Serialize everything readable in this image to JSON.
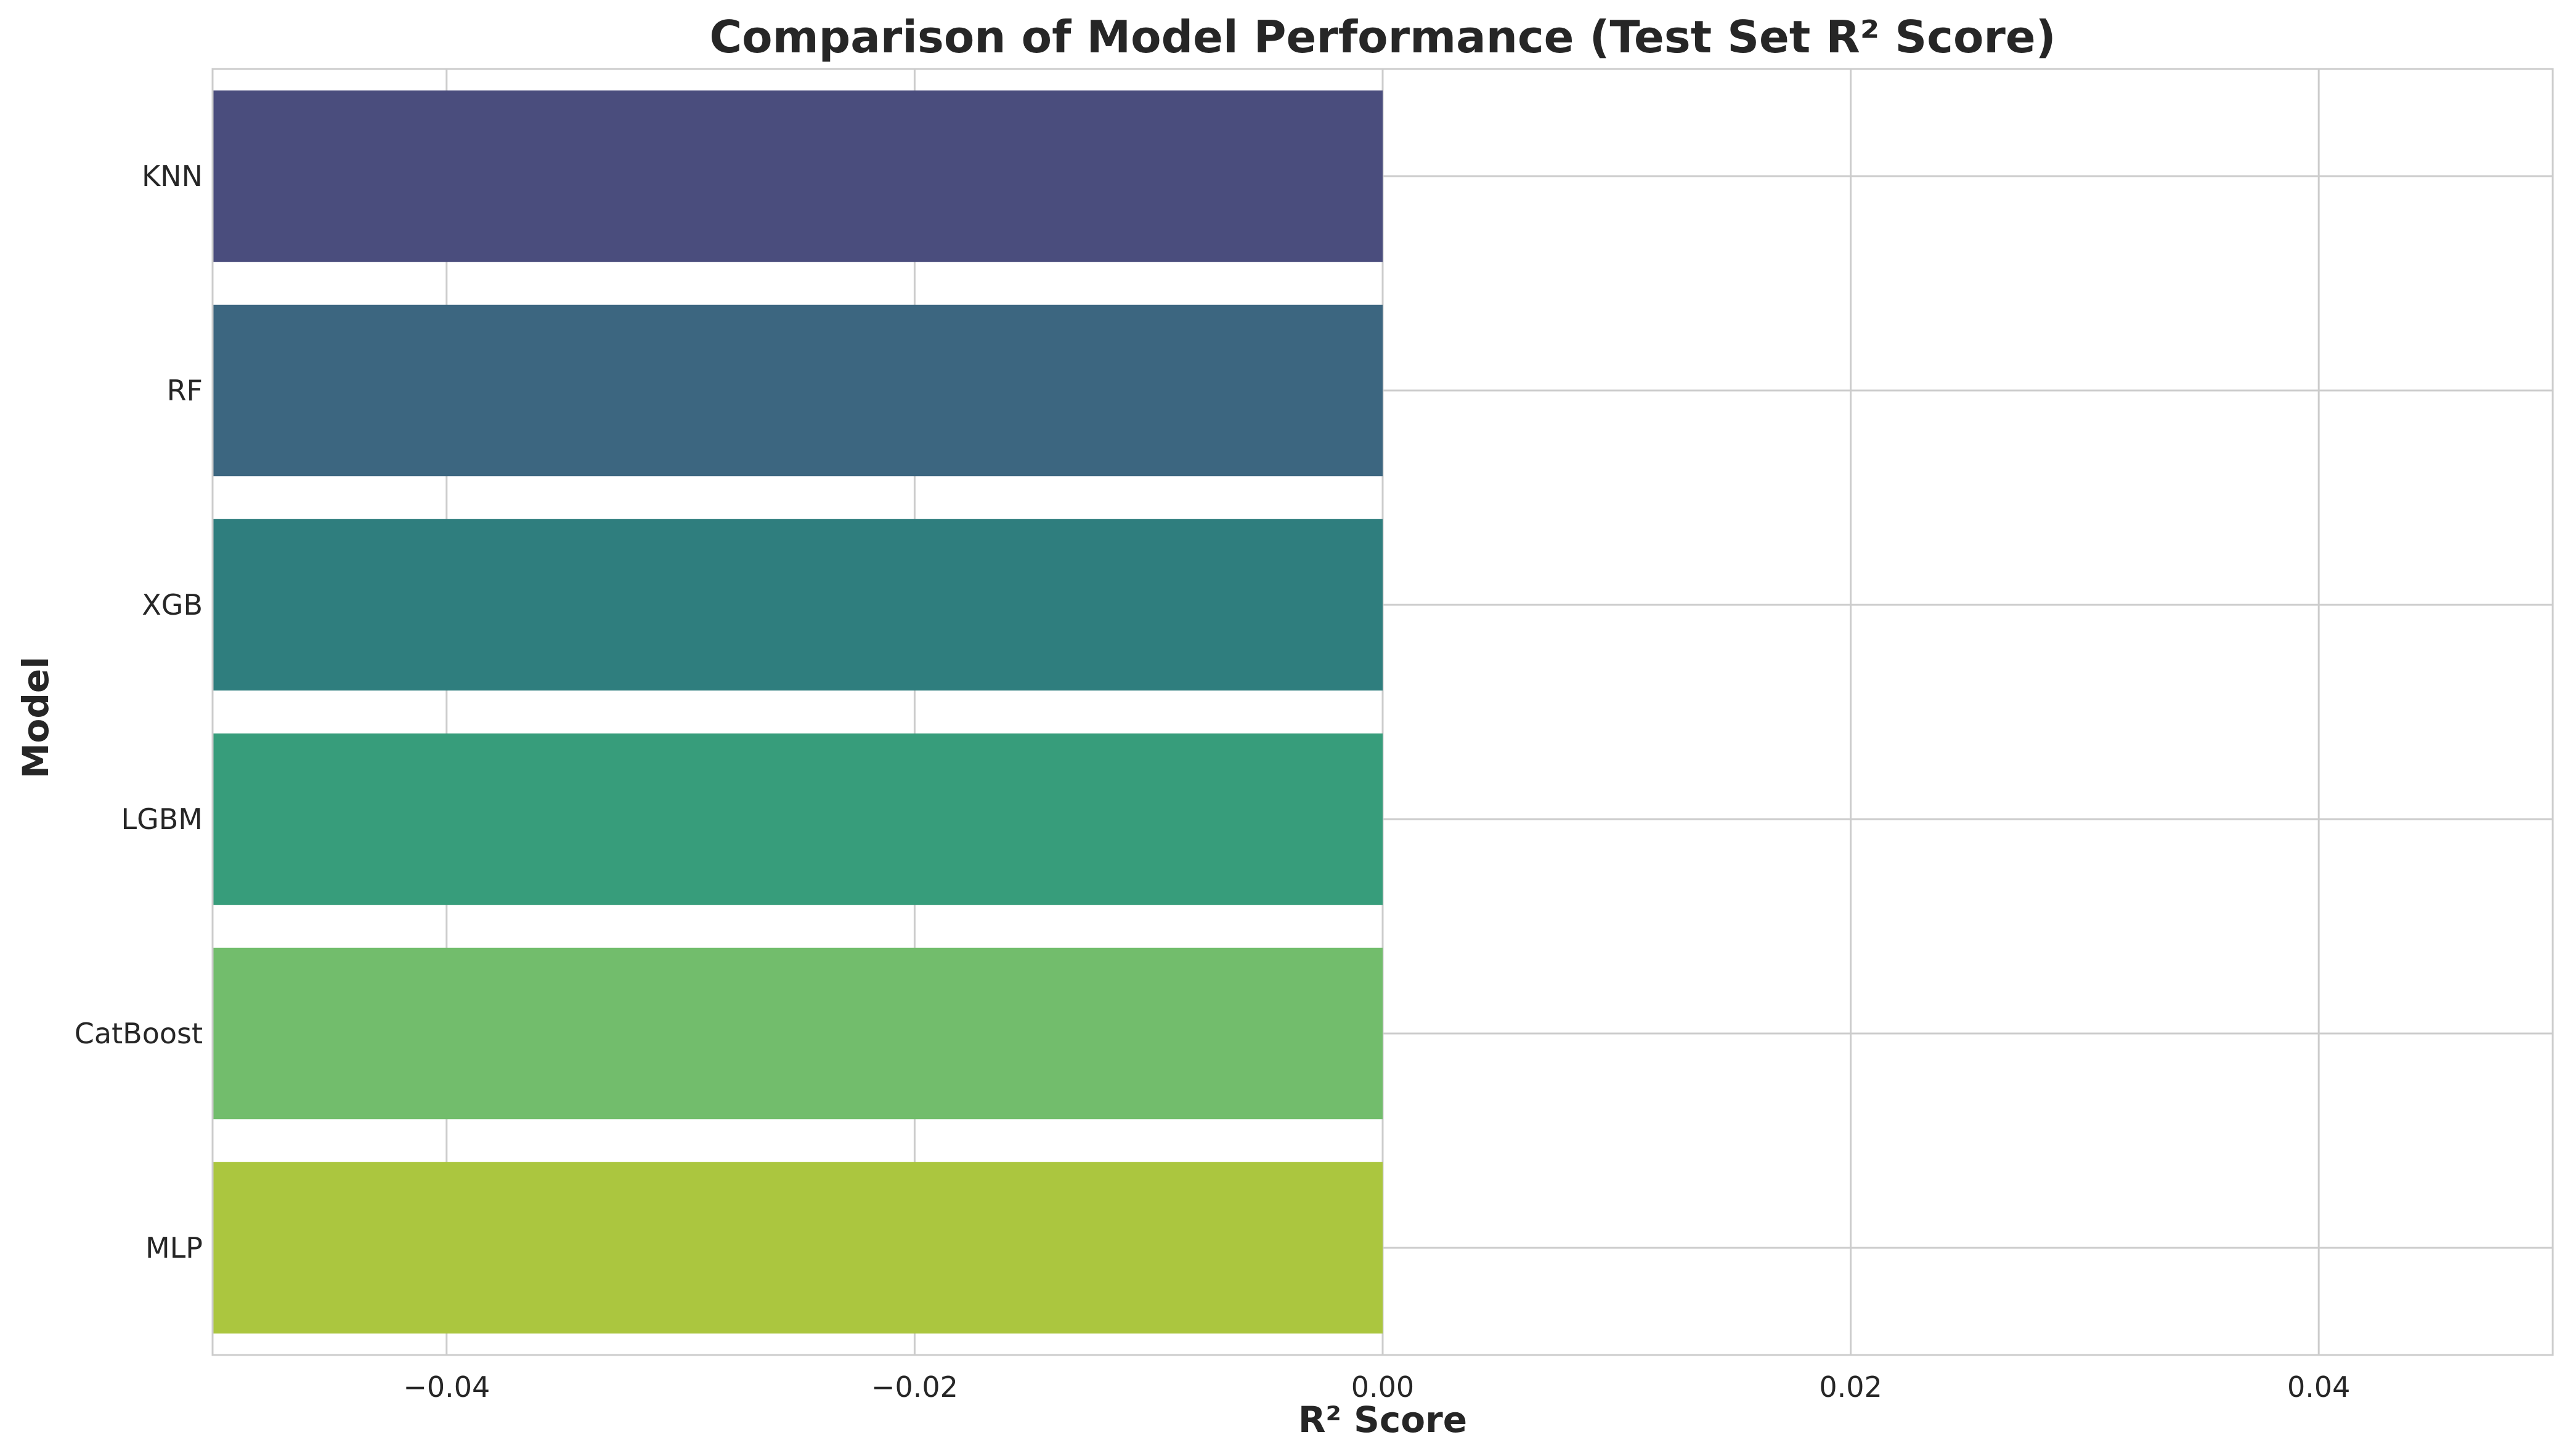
{
  "chart_data": {
    "type": "bar",
    "orientation": "horizontal",
    "title": "Comparison of Model Performance (Test Set R² Score)",
    "xlabel": "R² Score",
    "ylabel": "Model",
    "categories": [
      "KNN",
      "RF",
      "XGB",
      "LGBM",
      "CatBoost",
      "MLP"
    ],
    "values": [
      -0.05,
      -0.05,
      -0.05,
      -0.05,
      -0.05,
      -0.05
    ],
    "colors": [
      "#4a4d7d",
      "#3c6680",
      "#2f7e7e",
      "#379d7b",
      "#72bd6c",
      "#abc63f"
    ],
    "xlim": [
      -0.05,
      0.05
    ],
    "xticks": [
      -0.04,
      -0.02,
      0.0,
      0.02,
      0.04
    ],
    "xtick_labels": [
      "−0.04",
      "−0.02",
      "0.00",
      "0.02",
      "0.04"
    ],
    "grid": true,
    "legend": "none"
  }
}
